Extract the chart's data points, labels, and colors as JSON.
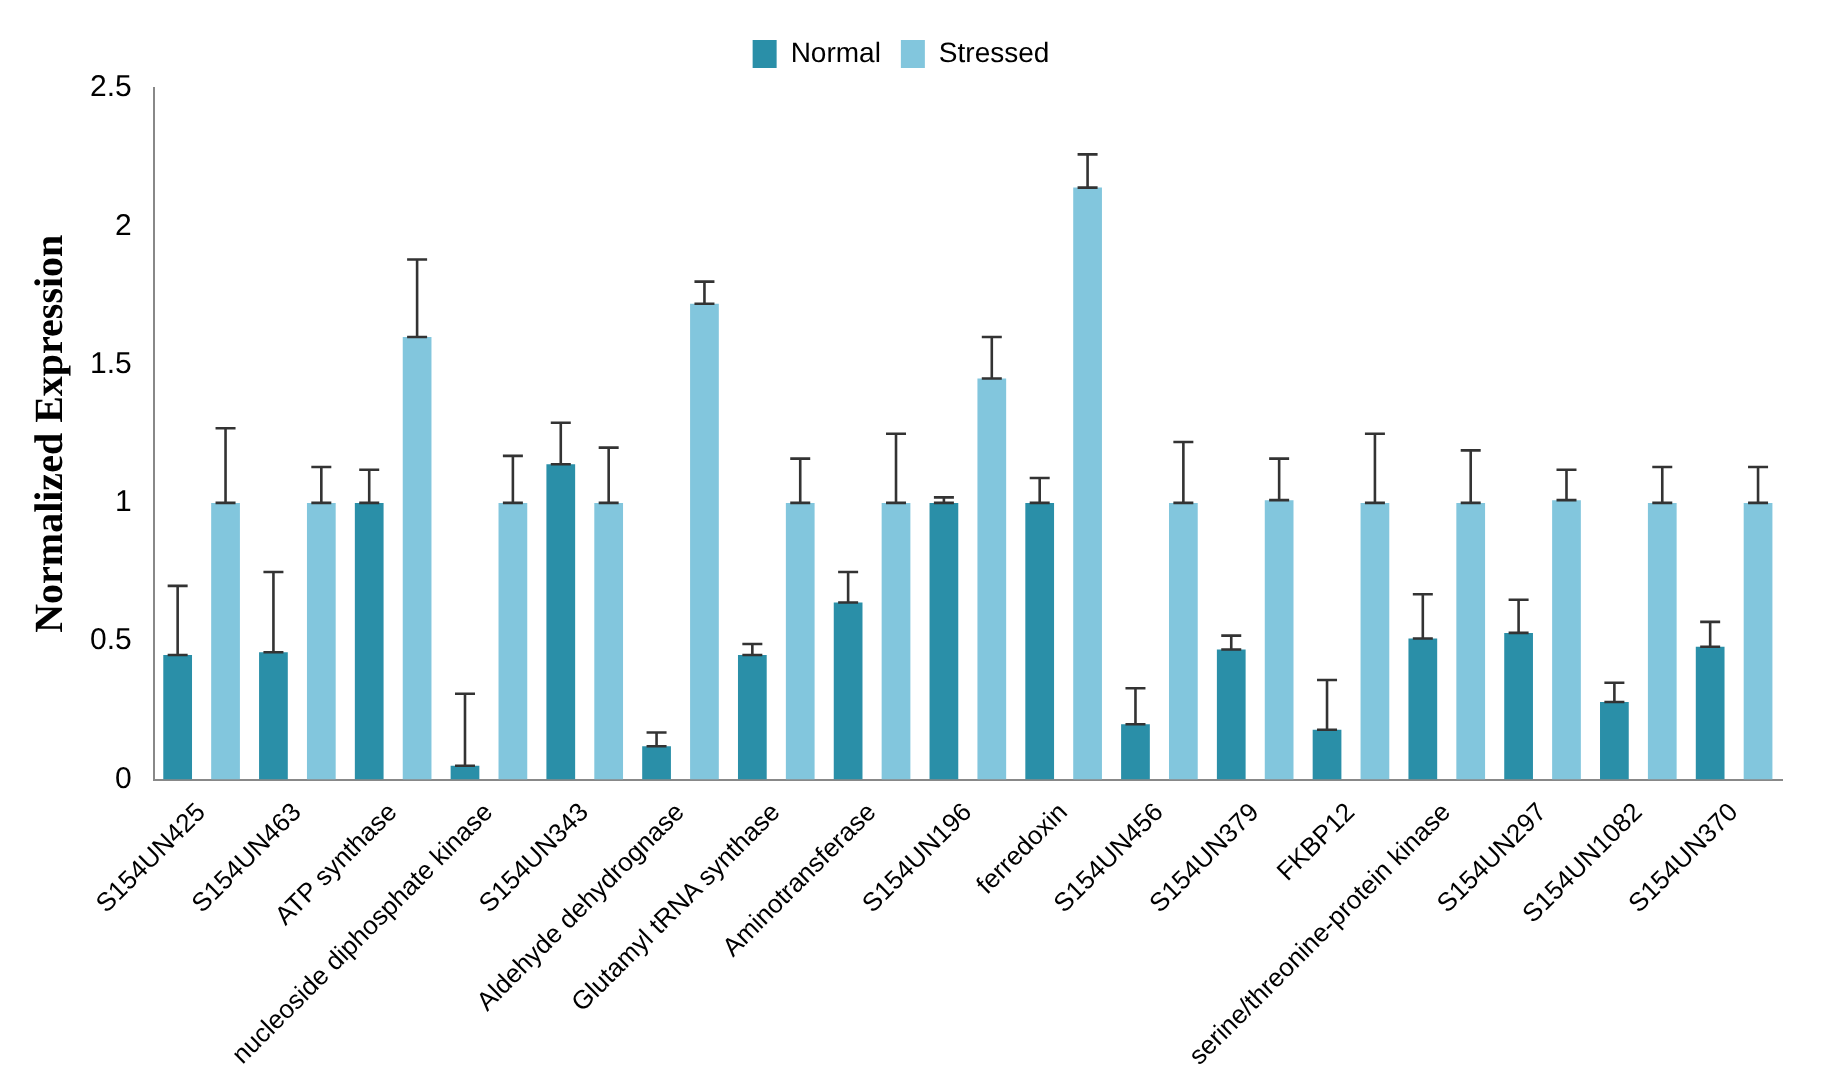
{
  "chart_data": {
    "type": "bar",
    "ylabel": "Normalized Expression",
    "categories": [
      "S154UN425",
      "S154UN463",
      "ATP synthase",
      "nucleoside diphosphate kinase",
      "S154UN343",
      "Aldehyde dehydrognase",
      "Glutamyl tRNA synthase",
      "Aminotransferase",
      "S154UN196",
      "ferredoxin",
      "S154UN456",
      "S154UN379",
      "FKBP12",
      "serine/threonine-protein kinase",
      "S154UN297",
      "S154UN1082",
      "S154UN370"
    ],
    "series": [
      {
        "name": "Normal",
        "color": "#2a8fa8",
        "values": [
          0.45,
          0.46,
          1.0,
          0.05,
          1.14,
          0.12,
          0.45,
          0.64,
          1.0,
          1.0,
          0.2,
          0.47,
          0.18,
          0.51,
          0.53,
          0.28,
          0.48
        ],
        "errors": [
          [
            0.45,
            0.7
          ],
          [
            0.46,
            0.75
          ],
          [
            1.0,
            1.12
          ],
          [
            0.05,
            0.31
          ],
          [
            1.14,
            1.29
          ],
          [
            0.12,
            0.17
          ],
          [
            0.45,
            0.49
          ],
          [
            0.64,
            0.75
          ],
          [
            1.0,
            1.02
          ],
          [
            1.0,
            1.09
          ],
          [
            0.2,
            0.33
          ],
          [
            0.47,
            0.52
          ],
          [
            0.18,
            0.36
          ],
          [
            0.51,
            0.67
          ],
          [
            0.53,
            0.65
          ],
          [
            0.28,
            0.35
          ],
          [
            0.48,
            0.57
          ]
        ]
      },
      {
        "name": "Stressed",
        "color": "#82c6dd",
        "values": [
          1.0,
          1.0,
          1.6,
          1.0,
          1.0,
          1.72,
          1.0,
          1.0,
          1.45,
          2.14,
          1.0,
          1.01,
          1.0,
          1.0,
          1.01,
          1.0,
          1.0
        ],
        "errors": [
          [
            1.0,
            1.27
          ],
          [
            1.0,
            1.13
          ],
          [
            1.6,
            1.88
          ],
          [
            1.0,
            1.17
          ],
          [
            1.0,
            1.2
          ],
          [
            1.72,
            1.8
          ],
          [
            1.0,
            1.16
          ],
          [
            1.0,
            1.25
          ],
          [
            1.45,
            1.6
          ],
          [
            2.14,
            2.26
          ],
          [
            1.0,
            1.22
          ],
          [
            1.01,
            1.16
          ],
          [
            1.0,
            1.25
          ],
          [
            1.0,
            1.19
          ],
          [
            1.01,
            1.12
          ],
          [
            1.0,
            1.13
          ],
          [
            1.0,
            1.13
          ]
        ]
      }
    ],
    "ylim": [
      0,
      2.5
    ],
    "yticks": [
      0,
      0.5,
      1,
      1.5,
      2,
      2.5
    ],
    "grid": false,
    "legend": "top"
  }
}
